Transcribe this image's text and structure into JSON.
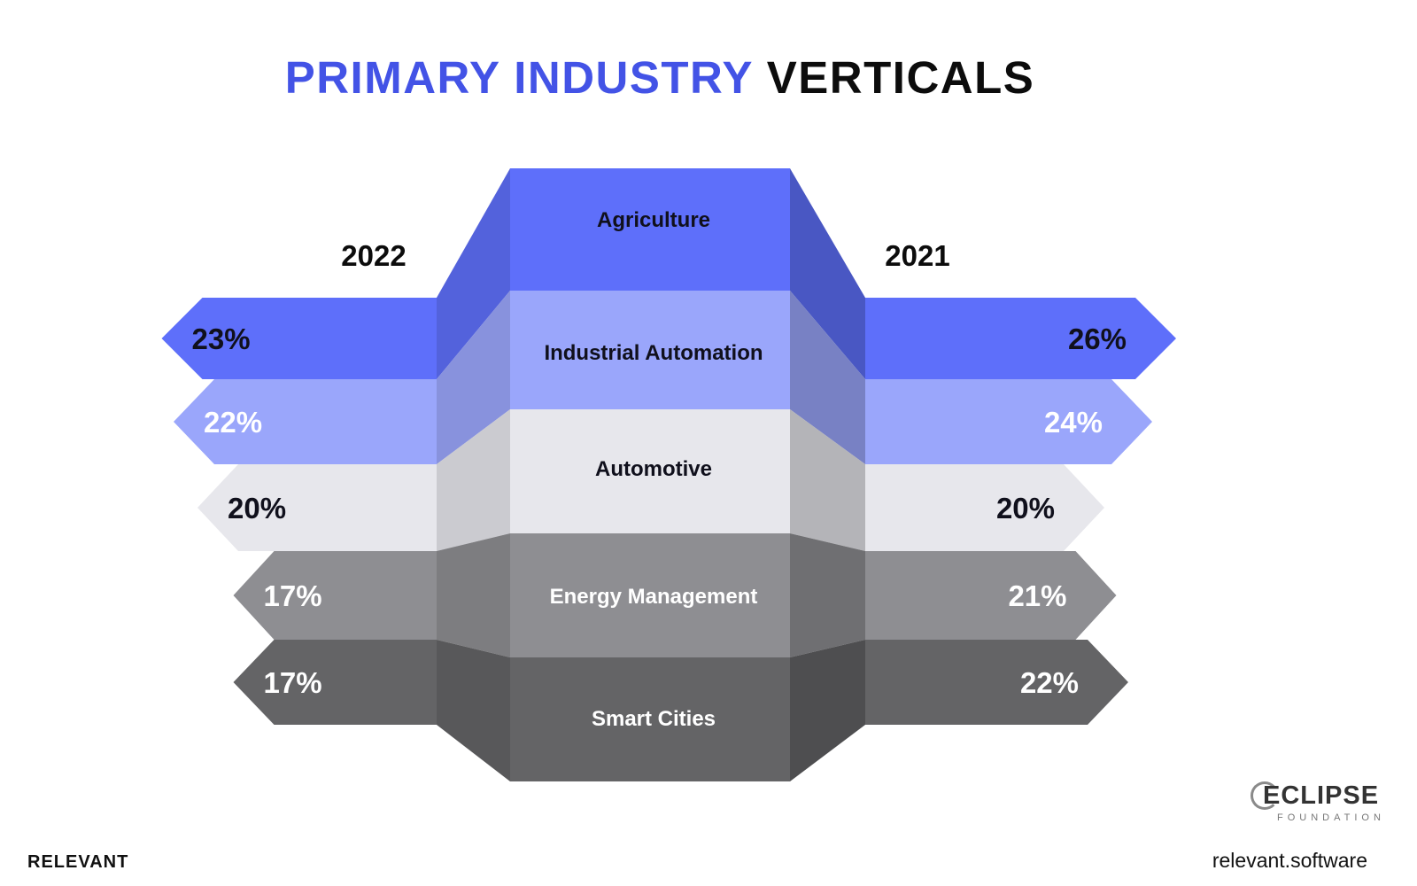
{
  "title": {
    "accent": "PRIMARY INDUSTRY",
    "plain": "VERTICALS"
  },
  "chart_data": {
    "type": "bar",
    "layout": "mirrored butterfly chart with central category labels",
    "categories": [
      "Agriculture",
      "Industrial Automation",
      "Automotive",
      "Energy Management",
      "Smart Cities"
    ],
    "series": [
      {
        "name": "2022",
        "side": "left",
        "values": [
          23,
          22,
          20,
          17,
          17
        ],
        "labels": [
          "23%",
          "22%",
          "20%",
          "17%",
          "17%"
        ]
      },
      {
        "name": "2021",
        "side": "right",
        "values": [
          26,
          24,
          20,
          21,
          22
        ],
        "labels": [
          "26%",
          "24%",
          "20%",
          "21%",
          "22%"
        ]
      }
    ],
    "unit": "%",
    "colors": [
      "#5e6ffa",
      "#9aa6fb",
      "#e7e7ec",
      "#8e8e92",
      "#646466"
    ],
    "label_colors": [
      "#10101c",
      "#ffffff",
      "#10101c",
      "#ffffff",
      "#ffffff"
    ]
  },
  "footer": {
    "brand": "RELEVANT",
    "url": "relevant.software"
  },
  "logo": {
    "name": "ECLIPSE",
    "sub": "FOUNDATION"
  }
}
